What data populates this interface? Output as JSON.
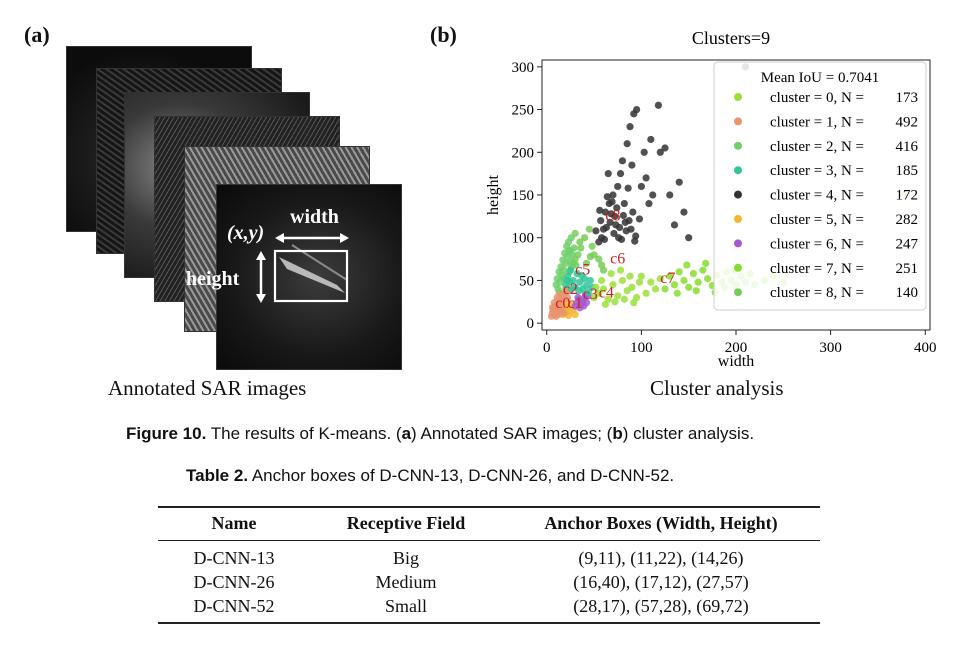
{
  "panel_a": {
    "label": "(a)",
    "annotations": {
      "xy": "(x,y)",
      "width": "width",
      "height": "height"
    },
    "caption": "Annotated SAR images"
  },
  "panel_b": {
    "label": "(b)",
    "caption": "Cluster analysis"
  },
  "chart_data": {
    "type": "scatter",
    "title": "Clusters=9",
    "xlabel": "width",
    "ylabel": "height",
    "xlim": [
      -5,
      405
    ],
    "ylim": [
      -8,
      308
    ],
    "xticks": [
      0,
      100,
      200,
      300,
      400
    ],
    "yticks": [
      0,
      50,
      100,
      150,
      200,
      250,
      300
    ],
    "grid": false,
    "legend": {
      "placement": "top-right",
      "title": "Mean IoU = 0.7041",
      "entries": [
        {
          "label": "cluster = 0, N =",
          "n": "173",
          "color": "#9be03a"
        },
        {
          "label": "cluster = 1, N =",
          "n": "492",
          "color": "#e8946e"
        },
        {
          "label": "cluster = 2, N =",
          "n": "416",
          "color": "#6fd06a"
        },
        {
          "label": "cluster = 3, N =",
          "n": "185",
          "color": "#2fc79a"
        },
        {
          "label": "cluster = 4, N =",
          "n": "172",
          "color": "#333333"
        },
        {
          "label": "cluster = 5, N =",
          "n": "282",
          "color": "#f2b632"
        },
        {
          "label": "cluster = 6, N =",
          "n": "247",
          "color": "#a65ad0"
        },
        {
          "label": "cluster = 7, N =",
          "n": "251",
          "color": "#86dd2e"
        },
        {
          "label": "cluster = 8, N =",
          "n": "140",
          "color": "#77cc55"
        }
      ]
    },
    "centroid_labels": [
      {
        "text": "c8",
        "x": 70,
        "y": 120
      },
      {
        "text": "c6",
        "x": 75,
        "y": 70
      },
      {
        "text": "c7",
        "x": 128,
        "y": 47
      },
      {
        "text": "c5",
        "x": 38,
        "y": 57
      },
      {
        "text": "c2",
        "x": 25,
        "y": 34
      },
      {
        "text": "c4",
        "x": 63,
        "y": 30
      },
      {
        "text": "c3",
        "x": 46,
        "y": 28
      },
      {
        "text": "c0",
        "x": 17,
        "y": 18
      },
      {
        "text": "c1",
        "x": 30,
        "y": 18
      }
    ],
    "clusters": [
      {
        "name": "cluster 4",
        "color": "#333333",
        "points": [
          [
            55,
            95
          ],
          [
            60,
            110
          ],
          [
            62,
            130
          ],
          [
            66,
            140
          ],
          [
            70,
            150
          ],
          [
            72,
            125
          ],
          [
            75,
            160
          ],
          [
            78,
            175
          ],
          [
            80,
            190
          ],
          [
            85,
            210
          ],
          [
            88,
            230
          ],
          [
            92,
            245
          ],
          [
            95,
            250
          ],
          [
            100,
            160
          ],
          [
            103,
            200
          ],
          [
            105,
            170
          ],
          [
            108,
            140
          ],
          [
            112,
            150
          ],
          [
            118,
            255
          ],
          [
            120,
            200
          ],
          [
            125,
            205
          ],
          [
            130,
            150
          ],
          [
            135,
            115
          ],
          [
            140,
            165
          ],
          [
            145,
            130
          ],
          [
            110,
            215
          ],
          [
            65,
            175
          ],
          [
            90,
            185
          ],
          [
            57,
            120
          ],
          [
            58,
            100
          ],
          [
            63,
            112
          ],
          [
            67,
            118
          ],
          [
            68,
            128
          ],
          [
            71,
            105
          ],
          [
            74,
            135
          ],
          [
            77,
            112
          ],
          [
            79,
            98
          ],
          [
            82,
            140
          ],
          [
            84,
            108
          ],
          [
            87,
            120
          ],
          [
            91,
            130
          ],
          [
            94,
            102
          ],
          [
            98,
            122
          ],
          [
            64,
            148
          ],
          [
            86,
            158
          ],
          [
            52,
            108
          ],
          [
            56,
            132
          ],
          [
            61,
            98
          ],
          [
            69,
            142
          ],
          [
            73,
            115
          ],
          [
            76,
            100
          ],
          [
            81,
            126
          ],
          [
            83,
            118
          ],
          [
            89,
            110
          ],
          [
            93,
            96
          ],
          [
            210,
            300
          ],
          [
            150,
            100
          ]
        ]
      },
      {
        "name": "cluster 8",
        "color": "#77cc55",
        "points": [
          [
            20,
            40
          ],
          [
            22,
            50
          ],
          [
            24,
            60
          ],
          [
            26,
            65
          ],
          [
            28,
            70
          ],
          [
            30,
            75
          ],
          [
            33,
            80
          ],
          [
            35,
            95
          ],
          [
            40,
            100
          ],
          [
            45,
            110
          ],
          [
            48,
            90
          ],
          [
            50,
            80
          ],
          [
            55,
            75
          ],
          [
            58,
            68
          ],
          [
            60,
            62
          ],
          [
            25,
            85
          ],
          [
            30,
            105
          ],
          [
            36,
            88
          ],
          [
            42,
            70
          ],
          [
            46,
            78
          ]
        ]
      },
      {
        "name": "cluster 5",
        "color": "#f2b632",
        "points": [
          [
            15,
            15
          ],
          [
            18,
            20
          ],
          [
            20,
            12
          ],
          [
            22,
            18
          ],
          [
            24,
            14
          ],
          [
            26,
            22
          ],
          [
            28,
            16
          ],
          [
            30,
            10
          ],
          [
            17,
            10
          ],
          [
            21,
            24
          ],
          [
            23,
            9
          ],
          [
            19,
            16
          ]
        ]
      },
      {
        "name": "cluster 1",
        "color": "#e8946e",
        "points": [
          [
            5,
            8
          ],
          [
            6,
            12
          ],
          [
            7,
            16
          ],
          [
            8,
            10
          ],
          [
            9,
            20
          ],
          [
            10,
            14
          ],
          [
            11,
            22
          ],
          [
            12,
            26
          ],
          [
            13,
            18
          ],
          [
            14,
            30
          ],
          [
            15,
            24
          ],
          [
            16,
            34
          ],
          [
            18,
            28
          ],
          [
            20,
            36
          ],
          [
            22,
            30
          ],
          [
            24,
            38
          ],
          [
            12,
            10
          ],
          [
            14,
            14
          ],
          [
            10,
            8
          ],
          [
            8,
            24
          ],
          [
            16,
            20
          ],
          [
            18,
            12
          ],
          [
            6,
            18
          ],
          [
            11,
            30
          ],
          [
            13,
            36
          ]
        ]
      },
      {
        "name": "cluster 6",
        "color": "#a65ad0",
        "points": [
          [
            30,
            20
          ],
          [
            32,
            24
          ],
          [
            34,
            28
          ],
          [
            36,
            22
          ],
          [
            38,
            26
          ],
          [
            40,
            30
          ],
          [
            42,
            24
          ],
          [
            44,
            32
          ],
          [
            35,
            18
          ],
          [
            39,
            20
          ],
          [
            33,
            30
          ],
          [
            41,
            34
          ]
        ]
      },
      {
        "name": "cluster 3",
        "color": "#2fc79a",
        "points": [
          [
            20,
            45
          ],
          [
            22,
            55
          ],
          [
            25,
            62
          ],
          [
            28,
            50
          ],
          [
            30,
            42
          ],
          [
            32,
            58
          ],
          [
            35,
            48
          ],
          [
            38,
            40
          ],
          [
            40,
            52
          ],
          [
            42,
            44
          ],
          [
            44,
            36
          ],
          [
            46,
            50
          ],
          [
            48,
            42
          ],
          [
            26,
            40
          ],
          [
            34,
            38
          ],
          [
            18,
            52
          ],
          [
            24,
            48
          ],
          [
            37,
            56
          ]
        ]
      },
      {
        "name": "cluster 2",
        "color": "#6fd06a",
        "points": [
          [
            12,
            40
          ],
          [
            14,
            48
          ],
          [
            16,
            56
          ],
          [
            18,
            62
          ],
          [
            20,
            70
          ],
          [
            22,
            78
          ],
          [
            24,
            85
          ],
          [
            15,
            66
          ],
          [
            17,
            74
          ],
          [
            19,
            82
          ],
          [
            21,
            90
          ],
          [
            11,
            52
          ],
          [
            13,
            60
          ],
          [
            25,
            72
          ],
          [
            27,
            80
          ],
          [
            23,
            95
          ],
          [
            26,
            100
          ],
          [
            29,
            88
          ],
          [
            31,
            68
          ],
          [
            10,
            45
          ]
        ]
      },
      {
        "name": "cluster 0",
        "color": "#9be03a",
        "points": [
          [
            50,
            30
          ],
          [
            55,
            35
          ],
          [
            60,
            40
          ],
          [
            65,
            28
          ],
          [
            70,
            45
          ],
          [
            75,
            32
          ],
          [
            80,
            50
          ],
          [
            85,
            38
          ],
          [
            90,
            42
          ],
          [
            95,
            30
          ],
          [
            100,
            55
          ],
          [
            105,
            35
          ],
          [
            110,
            48
          ],
          [
            115,
            40
          ],
          [
            120,
            52
          ],
          [
            58,
            50
          ],
          [
            68,
            58
          ],
          [
            78,
            62
          ],
          [
            88,
            55
          ],
          [
            98,
            48
          ],
          [
            62,
            22
          ],
          [
            72,
            25
          ],
          [
            82,
            28
          ],
          [
            92,
            24
          ],
          [
            52,
            42
          ]
        ]
      },
      {
        "name": "cluster 7",
        "color": "#86dd2e",
        "points": [
          [
            125,
            40
          ],
          [
            130,
            55
          ],
          [
            135,
            45
          ],
          [
            140,
            60
          ],
          [
            145,
            50
          ],
          [
            150,
            42
          ],
          [
            155,
            58
          ],
          [
            160,
            48
          ],
          [
            165,
            62
          ],
          [
            170,
            52
          ],
          [
            175,
            44
          ],
          [
            180,
            56
          ],
          [
            185,
            48
          ],
          [
            190,
            60
          ],
          [
            195,
            50
          ],
          [
            200,
            45
          ],
          [
            205,
            55
          ],
          [
            210,
            48
          ],
          [
            215,
            58
          ],
          [
            220,
            45
          ],
          [
            230,
            50
          ],
          [
            240,
            55
          ],
          [
            250,
            48
          ],
          [
            138,
            35
          ],
          [
            148,
            68
          ],
          [
            158,
            38
          ],
          [
            168,
            70
          ],
          [
            178,
            36
          ],
          [
            188,
            42
          ],
          [
            198,
            62
          ],
          [
            380,
            152
          ]
        ]
      }
    ]
  },
  "figure_caption": {
    "label": "Figure 10.",
    "text_1": " The results of K-means. (",
    "a": "a",
    "text_2": ") Annotated SAR images; (",
    "b": "b",
    "text_3": ") cluster analysis."
  },
  "table": {
    "caption_label": "Table 2.",
    "caption_text": " Anchor boxes of D-CNN-13, D-CNN-26, and D-CNN-52.",
    "headers": [
      "Name",
      "Receptive Field",
      "Anchor Boxes (Width, Height)"
    ],
    "rows": [
      [
        "D-CNN-13",
        "Big",
        "(9,11), (11,22), (14,26)"
      ],
      [
        "D-CNN-26",
        "Medium",
        "(16,40), (17,12), (27,57)"
      ],
      [
        "D-CNN-52",
        "Small",
        "(28,17), (57,28), (69,72)"
      ]
    ]
  }
}
